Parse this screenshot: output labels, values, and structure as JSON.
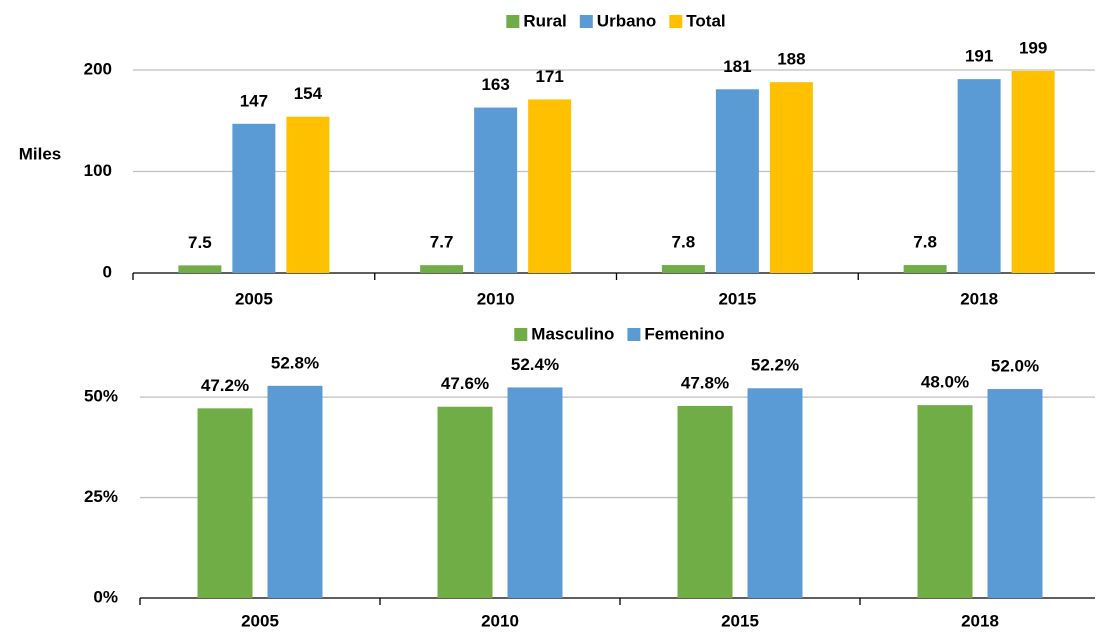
{
  "chart_data": [
    {
      "type": "bar",
      "axis_label": "Miles",
      "categories": [
        "2005",
        "2010",
        "2015",
        "2018"
      ],
      "series": [
        {
          "name": "Rural",
          "color": "#70ad47",
          "values": [
            7.5,
            7.7,
            7.8,
            7.8
          ]
        },
        {
          "name": "Urbano",
          "color": "#5b9bd5",
          "values": [
            147,
            163,
            181,
            191
          ]
        },
        {
          "name": "Total",
          "color": "#ffc000",
          "values": [
            154,
            171,
            188,
            199
          ]
        }
      ],
      "ylim": [
        0,
        200
      ],
      "yticks": [
        0,
        100,
        200
      ],
      "grid": true,
      "legend": "top"
    },
    {
      "type": "bar",
      "categories": [
        "2005",
        "2010",
        "2015",
        "2018"
      ],
      "series": [
        {
          "name": "Masculino",
          "color": "#70ad47",
          "values": [
            47.2,
            47.6,
            47.8,
            48.0
          ],
          "value_labels": [
            "47.2%",
            "47.6%",
            "47.8%",
            "48.0%"
          ]
        },
        {
          "name": "Femenino",
          "color": "#5b9bd5",
          "values": [
            52.8,
            52.4,
            52.2,
            52.0
          ],
          "value_labels": [
            "52.8%",
            "52.4%",
            "52.2%",
            "52.0%"
          ]
        }
      ],
      "ylim": [
        0,
        55
      ],
      "yticks": [
        {
          "value": 0,
          "label": "0%"
        },
        {
          "value": 25,
          "label": "25%"
        },
        {
          "value": 50,
          "label": "50%"
        }
      ],
      "grid": true,
      "legend": "top"
    }
  ]
}
